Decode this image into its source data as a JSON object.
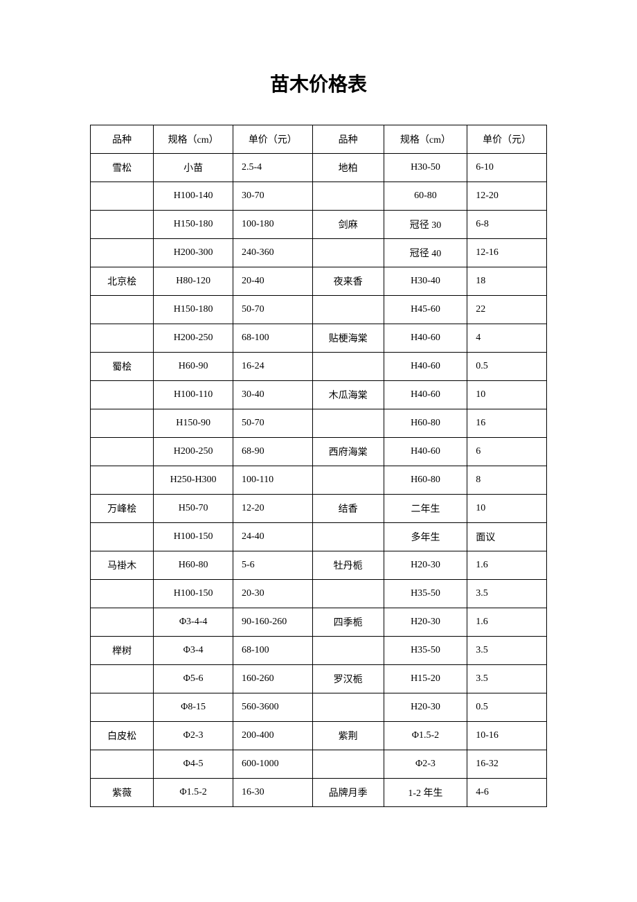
{
  "title": "苗木价格表",
  "table": {
    "columns": [
      "品种",
      "规格（cm）",
      "单价（元）",
      "品种",
      "规格（cm）",
      "单价（元）"
    ],
    "column_widths": [
      "13%",
      "17%",
      "17%",
      "15%",
      "18%",
      "17%"
    ],
    "border_color": "#000000",
    "background_color": "#ffffff",
    "font_size": 14,
    "cell_padding": 10,
    "rows": [
      [
        "雪松",
        "小苗",
        "2.5-4",
        "地柏",
        "H30-50",
        "6-10"
      ],
      [
        "",
        "H100-140",
        "30-70",
        "",
        "60-80",
        "12-20"
      ],
      [
        "",
        "H150-180",
        "100-180",
        "剑麻",
        "冠径 30",
        "6-8"
      ],
      [
        "",
        "H200-300",
        "240-360",
        "",
        "冠径 40",
        "12-16"
      ],
      [
        "北京桧",
        "H80-120",
        "20-40",
        "夜来香",
        "H30-40",
        "18"
      ],
      [
        "",
        "H150-180",
        "50-70",
        "",
        "H45-60",
        "22"
      ],
      [
        "",
        "H200-250",
        "68-100",
        "贴梗海棠",
        "H40-60",
        "4"
      ],
      [
        "蜀桧",
        "H60-90",
        "16-24",
        "",
        "H40-60",
        "0.5"
      ],
      [
        "",
        "H100-110",
        "30-40",
        "木瓜海棠",
        "H40-60",
        "10"
      ],
      [
        "",
        "H150-90",
        "50-70",
        "",
        "H60-80",
        "16"
      ],
      [
        "",
        "H200-250",
        "68-90",
        "西府海棠",
        "H40-60",
        "6"
      ],
      [
        "",
        "H250-H300",
        "100-110",
        "",
        "H60-80",
        "8"
      ],
      [
        "万峰桧",
        "H50-70",
        "12-20",
        "结香",
        "二年生",
        "10"
      ],
      [
        "",
        "H100-150",
        "24-40",
        "",
        "多年生",
        "面议"
      ],
      [
        "马褂木",
        "H60-80",
        "5-6",
        "牡丹栀",
        "H20-30",
        "1.6"
      ],
      [
        "",
        "H100-150",
        "20-30",
        "",
        "H35-50",
        "3.5"
      ],
      [
        "",
        "Φ3-4-4",
        "90-160-260",
        "四季栀",
        "H20-30",
        "1.6"
      ],
      [
        "榉树",
        "Φ3-4",
        "68-100",
        "",
        "H35-50",
        "3.5"
      ],
      [
        "",
        "Φ5-6",
        "160-260",
        "罗汉栀",
        "H15-20",
        "3.5"
      ],
      [
        "",
        "Φ8-15",
        "560-3600",
        "",
        "H20-30",
        "0.5"
      ],
      [
        "白皮松",
        "Φ2-3",
        "200-400",
        "紫荆",
        "Φ1.5-2",
        "10-16"
      ],
      [
        "",
        "Φ4-5",
        "600-1000",
        "",
        "Φ2-3",
        "16-32"
      ],
      [
        "紫薇",
        "Φ1.5-2",
        "16-30",
        "品牌月季",
        "1-2 年生",
        "4-6"
      ]
    ],
    "left_align_cols": [
      2,
      5
    ]
  },
  "title_fontsize": 28
}
